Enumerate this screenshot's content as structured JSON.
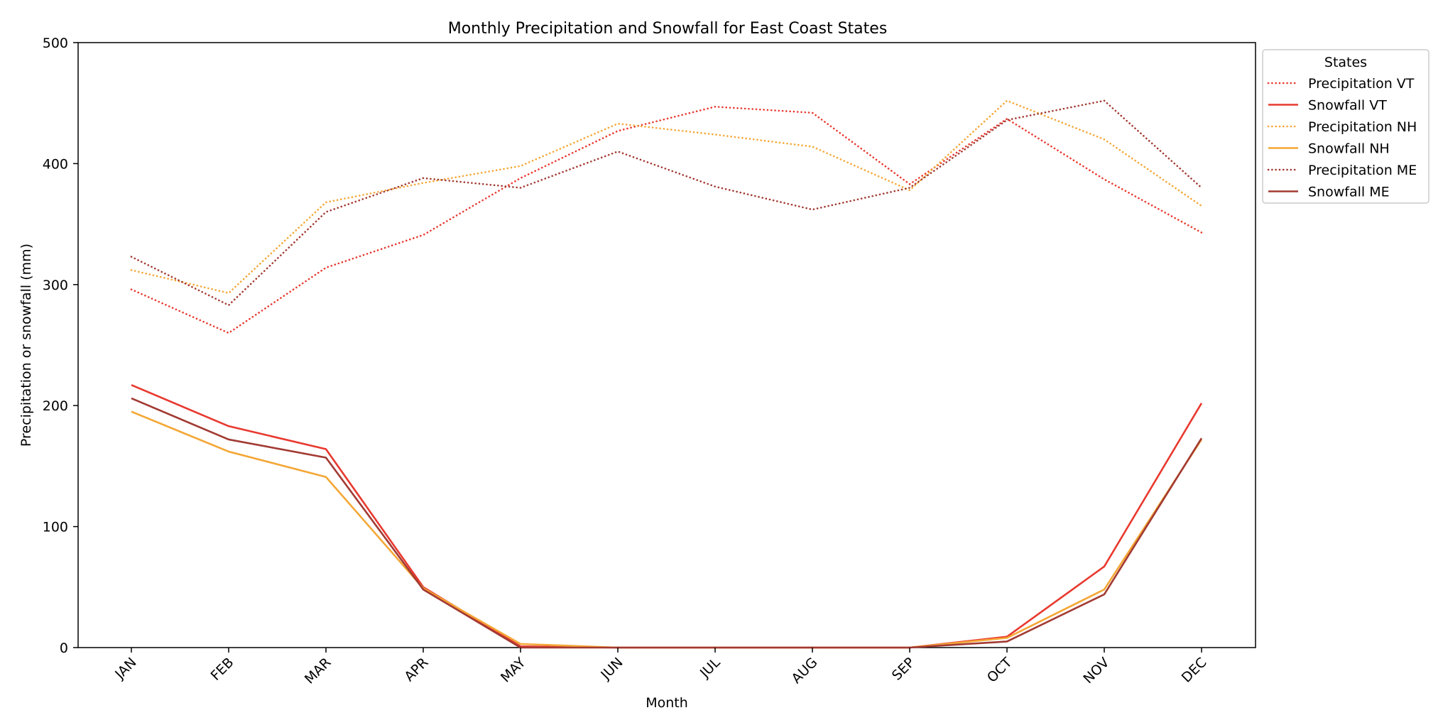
{
  "chart_data": {
    "type": "line",
    "title": "Monthly Precipitation and Snowfall for East Coast States",
    "xlabel": "Month",
    "ylabel": "Precipitation or snowfall (mm)",
    "ylim": [
      0,
      500
    ],
    "yticks": [
      "0",
      "100",
      "200",
      "300",
      "400",
      "500"
    ],
    "categories": [
      "JAN",
      "FEB",
      "MAR",
      "APR",
      "MAY",
      "JUN",
      "JUL",
      "AUG",
      "SEP",
      "OCT",
      "NOV",
      "DEC"
    ],
    "grid": false,
    "legend": {
      "title": "States",
      "placement": "outside right, top"
    },
    "series": [
      {
        "name": "Precipitation VT",
        "style": "dotted",
        "color": "#e8392f",
        "values": [
          296,
          260,
          314,
          341,
          388,
          427,
          447,
          442,
          383,
          437,
          387,
          343
        ]
      },
      {
        "name": "Snowfall VT",
        "style": "solid",
        "color": "#e8392f",
        "values": [
          217,
          183,
          164,
          50,
          1,
          0,
          0,
          0,
          0,
          9,
          67,
          202
        ]
      },
      {
        "name": "Precipitation NH",
        "style": "dotted",
        "color": "#f4a736",
        "values": [
          312,
          293,
          368,
          384,
          398,
          433,
          424,
          414,
          378,
          452,
          420,
          365
        ]
      },
      {
        "name": "Snowfall NH",
        "style": "solid",
        "color": "#f4a736",
        "values": [
          195,
          162,
          141,
          49,
          3,
          0,
          0,
          0,
          0,
          8,
          48,
          172
        ]
      },
      {
        "name": "Precipitation ME",
        "style": "dotted",
        "color": "#a23a32",
        "values": [
          323,
          283,
          360,
          388,
          380,
          410,
          381,
          362,
          380,
          436,
          452,
          380
        ]
      },
      {
        "name": "Snowfall ME",
        "style": "solid",
        "color": "#a23a32",
        "values": [
          206,
          172,
          157,
          48,
          0,
          0,
          0,
          0,
          0,
          5,
          44,
          173
        ]
      }
    ]
  }
}
